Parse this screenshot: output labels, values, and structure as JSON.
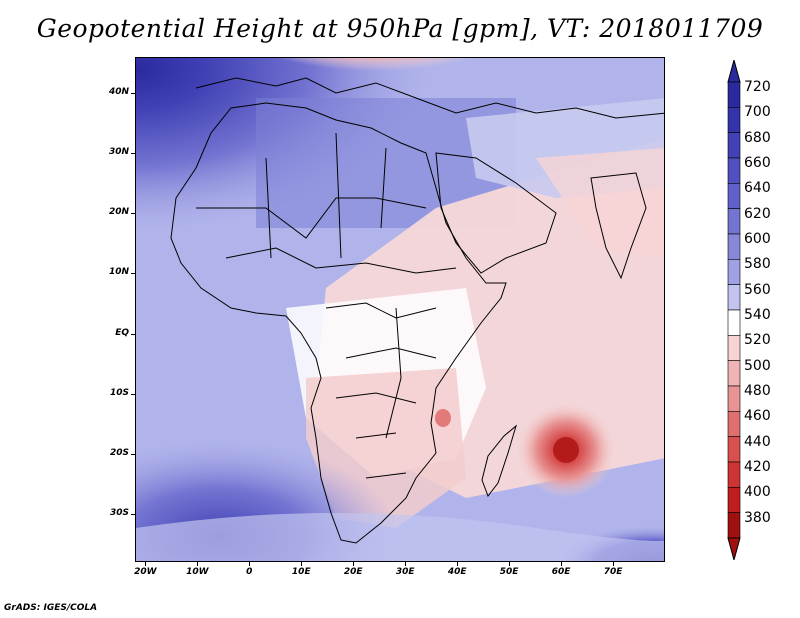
{
  "title": "Geopotential Height at 950hPa [gpm], VT: 2018011709",
  "credit": "GrADS: IGES/COLA",
  "map": {
    "projection": "latlon",
    "lon_range": [
      -22,
      80
    ],
    "lat_range": [
      -38,
      46
    ],
    "lat_ticks": [
      {
        "label": "40N",
        "value": 40
      },
      {
        "label": "30N",
        "value": 30
      },
      {
        "label": "20N",
        "value": 20
      },
      {
        "label": "10N",
        "value": 10
      },
      {
        "label": "EQ",
        "value": 0
      },
      {
        "label": "10S",
        "value": -10
      },
      {
        "label": "20S",
        "value": -20
      },
      {
        "label": "30S",
        "value": -30
      }
    ],
    "lon_ticks": [
      {
        "label": "20W",
        "value": -20
      },
      {
        "label": "10W",
        "value": -10
      },
      {
        "label": "0",
        "value": 0
      },
      {
        "label": "10E",
        "value": 10
      },
      {
        "label": "20E",
        "value": 20
      },
      {
        "label": "30E",
        "value": 30
      },
      {
        "label": "40E",
        "value": 40
      },
      {
        "label": "50E",
        "value": 50
      },
      {
        "label": "60E",
        "value": 60
      },
      {
        "label": "70E",
        "value": 70
      }
    ],
    "features": [
      {
        "name": "low-mediterranean",
        "description": "negative height anomaly over Mediterranean/Balkans"
      },
      {
        "name": "low-mozambique-channel",
        "description": "tropical cyclone low east of Madagascar near 62E 18S"
      },
      {
        "name": "high-north-atlantic",
        "description": "high heights over NW Africa / Atlantic"
      },
      {
        "name": "high-south-atlantic",
        "description": "high heights in South Atlantic"
      }
    ]
  },
  "colorbar": {
    "levels": [
      "720",
      "700",
      "680",
      "660",
      "640",
      "620",
      "600",
      "580",
      "560",
      "540",
      "520",
      "500",
      "480",
      "460",
      "440",
      "420",
      "400",
      "380"
    ],
    "colors": [
      "#2a2a9e",
      "#3434aa",
      "#4242b6",
      "#5050c0",
      "#6060ca",
      "#7474d2",
      "#8888da",
      "#a0a0e4",
      "#c2c4ef",
      "#ffffff",
      "#f7d4d4",
      "#f0b4b4",
      "#e89494",
      "#e07070",
      "#d85050",
      "#ce3434",
      "#c01e1e",
      "#a01010"
    ]
  }
}
